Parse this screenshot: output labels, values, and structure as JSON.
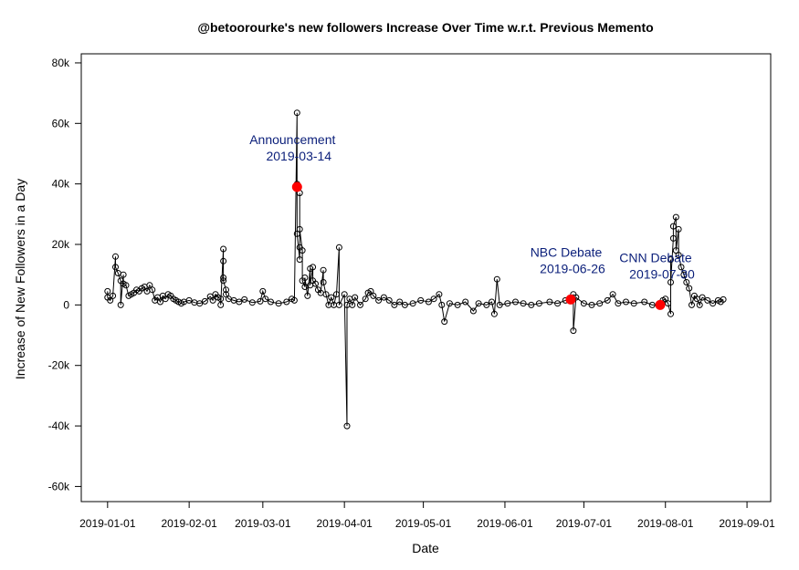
{
  "chart_data": {
    "type": "scatter",
    "title": "@betoorourke's new followers Increase Over Time w.r.t. Previous Memento",
    "xlabel": "Date",
    "ylabel": "Increase of New Followers in a Day",
    "xlim": [
      "2018-12-22",
      "2019-09-10"
    ],
    "ylim": [
      -65000,
      83000
    ],
    "x_ticks": [
      "2019-01-01",
      "2019-02-01",
      "2019-03-01",
      "2019-04-01",
      "2019-05-01",
      "2019-06-01",
      "2019-07-01",
      "2019-08-01",
      "2019-09-01"
    ],
    "y_ticks": [
      -60000,
      -40000,
      -20000,
      0,
      20000,
      40000,
      60000,
      80000
    ],
    "y_tick_labels": [
      "-60k",
      "-40k",
      "-20k",
      "0",
      "20k",
      "40k",
      "60k",
      "80k"
    ],
    "grid": false,
    "legend": "none",
    "series": [
      {
        "points": [
          [
            "2019-01-01",
            4500
          ],
          [
            "2019-01-01",
            2500
          ],
          [
            "2019-01-02",
            1500
          ],
          [
            "2019-01-03",
            3000
          ],
          [
            "2019-01-04",
            16000
          ],
          [
            "2019-01-04",
            12500
          ],
          [
            "2019-01-05",
            10500
          ],
          [
            "2019-01-06",
            8000
          ],
          [
            "2019-01-06",
            0
          ],
          [
            "2019-01-07",
            10000
          ],
          [
            "2019-01-07",
            7000
          ],
          [
            "2019-01-08",
            6500
          ],
          [
            "2019-01-09",
            3000
          ],
          [
            "2019-01-10",
            3500
          ],
          [
            "2019-01-11",
            4000
          ],
          [
            "2019-01-12",
            5000
          ],
          [
            "2019-01-13",
            4500
          ],
          [
            "2019-01-14",
            5500
          ],
          [
            "2019-01-15",
            6000
          ],
          [
            "2019-01-16",
            4500
          ],
          [
            "2019-01-17",
            6500
          ],
          [
            "2019-01-18",
            5000
          ],
          [
            "2019-01-19",
            1500
          ],
          [
            "2019-01-20",
            2500
          ],
          [
            "2019-01-21",
            1000
          ],
          [
            "2019-01-22",
            3000
          ],
          [
            "2019-01-23",
            2000
          ],
          [
            "2019-01-24",
            3500
          ],
          [
            "2019-01-25",
            3000
          ],
          [
            "2019-01-26",
            2000
          ],
          [
            "2019-01-27",
            1500
          ],
          [
            "2019-01-28",
            1000
          ],
          [
            "2019-01-29",
            500
          ],
          [
            "2019-01-30",
            1000
          ],
          [
            "2019-02-01",
            1500
          ],
          [
            "2019-02-03",
            800
          ],
          [
            "2019-02-05",
            500
          ],
          [
            "2019-02-07",
            1200
          ],
          [
            "2019-02-09",
            2800
          ],
          [
            "2019-02-10",
            1500
          ],
          [
            "2019-02-11",
            3500
          ],
          [
            "2019-02-12",
            2500
          ],
          [
            "2019-02-13",
            2000
          ],
          [
            "2019-02-13",
            0
          ],
          [
            "2019-02-14",
            18500
          ],
          [
            "2019-02-14",
            14500
          ],
          [
            "2019-02-14",
            9000
          ],
          [
            "2019-02-14",
            8000
          ],
          [
            "2019-02-15",
            5000
          ],
          [
            "2019-02-15",
            3500
          ],
          [
            "2019-02-16",
            2000
          ],
          [
            "2019-02-18",
            1500
          ],
          [
            "2019-02-20",
            1000
          ],
          [
            "2019-02-22",
            1800
          ],
          [
            "2019-02-25",
            800
          ],
          [
            "2019-02-28",
            1200
          ],
          [
            "2019-03-01",
            4500
          ],
          [
            "2019-03-02",
            2000
          ],
          [
            "2019-03-04",
            1000
          ],
          [
            "2019-03-07",
            500
          ],
          [
            "2019-03-10",
            1000
          ],
          [
            "2019-03-12",
            2000
          ],
          [
            "2019-03-13",
            1500
          ],
          [
            "2019-03-14",
            63500
          ],
          [
            "2019-03-14",
            40000
          ],
          [
            "2019-03-14",
            38500
          ],
          [
            "2019-03-14",
            23500
          ],
          [
            "2019-03-15",
            15000
          ],
          [
            "2019-03-15",
            37000
          ],
          [
            "2019-03-15",
            19000
          ],
          [
            "2019-03-15",
            25000
          ],
          [
            "2019-03-16",
            18000
          ],
          [
            "2019-03-16",
            8000
          ],
          [
            "2019-03-17",
            6000
          ],
          [
            "2019-03-17",
            9000
          ],
          [
            "2019-03-18",
            3000
          ],
          [
            "2019-03-19",
            12000
          ],
          [
            "2019-03-19",
            6500
          ],
          [
            "2019-03-20",
            12500
          ],
          [
            "2019-03-20",
            8000
          ],
          [
            "2019-03-21",
            7000
          ],
          [
            "2019-03-22",
            5000
          ],
          [
            "2019-03-23",
            4000
          ],
          [
            "2019-03-24",
            11500
          ],
          [
            "2019-03-24",
            7500
          ],
          [
            "2019-03-25",
            3500
          ],
          [
            "2019-03-26",
            0
          ],
          [
            "2019-03-27",
            2500
          ],
          [
            "2019-03-28",
            0
          ],
          [
            "2019-03-29",
            3500
          ],
          [
            "2019-03-30",
            19000
          ],
          [
            "2019-03-30",
            0
          ],
          [
            "2019-04-01",
            3500
          ],
          [
            "2019-04-02",
            -40000
          ],
          [
            "2019-04-02",
            0
          ],
          [
            "2019-04-03",
            2000
          ],
          [
            "2019-04-04",
            0
          ],
          [
            "2019-04-05",
            2500
          ],
          [
            "2019-04-07",
            0
          ],
          [
            "2019-04-09",
            2000
          ],
          [
            "2019-04-10",
            4000
          ],
          [
            "2019-04-11",
            4500
          ],
          [
            "2019-04-12",
            3000
          ],
          [
            "2019-04-14",
            1500
          ],
          [
            "2019-04-16",
            2500
          ],
          [
            "2019-04-18",
            1500
          ],
          [
            "2019-04-20",
            0
          ],
          [
            "2019-04-22",
            1000
          ],
          [
            "2019-04-24",
            0
          ],
          [
            "2019-04-27",
            500
          ],
          [
            "2019-04-30",
            1500
          ],
          [
            "2019-05-03",
            1000
          ],
          [
            "2019-05-05",
            2000
          ],
          [
            "2019-05-07",
            3500
          ],
          [
            "2019-05-08",
            0
          ],
          [
            "2019-05-09",
            -5500
          ],
          [
            "2019-05-11",
            500
          ],
          [
            "2019-05-14",
            0
          ],
          [
            "2019-05-17",
            1000
          ],
          [
            "2019-05-20",
            -2000
          ],
          [
            "2019-05-22",
            500
          ],
          [
            "2019-05-25",
            0
          ],
          [
            "2019-05-27",
            1000
          ],
          [
            "2019-05-28",
            -3000
          ],
          [
            "2019-05-29",
            8500
          ],
          [
            "2019-05-30",
            0
          ],
          [
            "2019-06-02",
            500
          ],
          [
            "2019-06-05",
            1000
          ],
          [
            "2019-06-08",
            500
          ],
          [
            "2019-06-11",
            0
          ],
          [
            "2019-06-14",
            500
          ],
          [
            "2019-06-18",
            1000
          ],
          [
            "2019-06-21",
            500
          ],
          [
            "2019-06-24",
            1500
          ],
          [
            "2019-06-26",
            1800
          ],
          [
            "2019-06-27",
            3500
          ],
          [
            "2019-06-27",
            -8500
          ],
          [
            "2019-06-28",
            2500
          ],
          [
            "2019-07-01",
            500
          ],
          [
            "2019-07-04",
            0
          ],
          [
            "2019-07-07",
            500
          ],
          [
            "2019-07-10",
            1500
          ],
          [
            "2019-07-12",
            3500
          ],
          [
            "2019-07-14",
            500
          ],
          [
            "2019-07-17",
            1000
          ],
          [
            "2019-07-20",
            500
          ],
          [
            "2019-07-24",
            1000
          ],
          [
            "2019-07-27",
            0
          ],
          [
            "2019-07-30",
            0
          ],
          [
            "2019-07-31",
            1500
          ],
          [
            "2019-08-01",
            2000
          ],
          [
            "2019-08-02",
            500
          ],
          [
            "2019-08-03",
            -3000
          ],
          [
            "2019-08-03",
            15000
          ],
          [
            "2019-08-03",
            7500
          ],
          [
            "2019-08-04",
            22000
          ],
          [
            "2019-08-04",
            26000
          ],
          [
            "2019-08-05",
            29000
          ],
          [
            "2019-08-05",
            18000
          ],
          [
            "2019-08-06",
            25000
          ],
          [
            "2019-08-06",
            16500
          ],
          [
            "2019-08-07",
            12500
          ],
          [
            "2019-08-08",
            10000
          ],
          [
            "2019-08-09",
            7500
          ],
          [
            "2019-08-10",
            5500
          ],
          [
            "2019-08-11",
            0
          ],
          [
            "2019-08-12",
            3000
          ],
          [
            "2019-08-13",
            2000
          ],
          [
            "2019-08-14",
            0
          ],
          [
            "2019-08-15",
            2500
          ],
          [
            "2019-08-17",
            1500
          ],
          [
            "2019-08-19",
            500
          ],
          [
            "2019-08-21",
            1500
          ],
          [
            "2019-08-22",
            1000
          ],
          [
            "2019-08-23",
            1800
          ]
        ]
      }
    ],
    "highlights": [
      {
        "x": "2019-03-14",
        "y": 39000,
        "label": "Announcement",
        "date_label": "2019-03-14",
        "color": "#ff0000"
      },
      {
        "x": "2019-06-26",
        "y": 1800,
        "label": "NBC Debate",
        "date_label": "2019-06-26",
        "color": "#ff0000"
      },
      {
        "x": "2019-07-30",
        "y": 0,
        "label": "CNN Debate",
        "date_label": "2019-07-30",
        "color": "#ff0000"
      }
    ],
    "annotation_color": "#0b1f7a"
  }
}
